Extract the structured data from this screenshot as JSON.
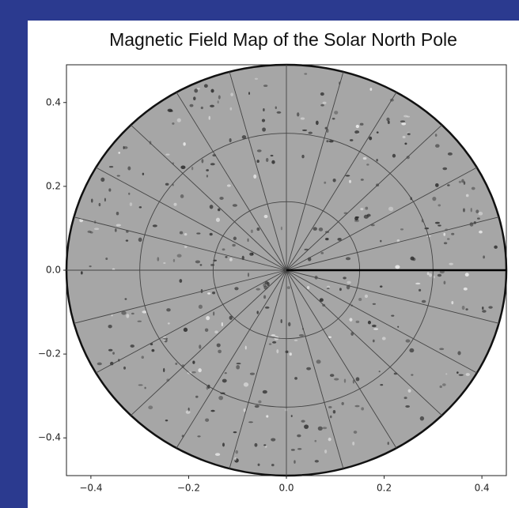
{
  "chart_data": {
    "type": "polar-map",
    "title": "Magnetic Field Map of the Solar North Pole",
    "xlim": [
      -0.45,
      0.45
    ],
    "ylim": [
      -0.49,
      0.49
    ],
    "xticks": [
      {
        "value": -0.4,
        "label": "−0.4"
      },
      {
        "value": -0.2,
        "label": "−0.2"
      },
      {
        "value": 0,
        "label": "0.0"
      },
      0.2,
      0.4
    ],
    "yticks": [
      {
        "value": -0.4,
        "label": "−0.4"
      },
      {
        "value": -0.2,
        "label": "−0.2"
      },
      {
        "value": 0,
        "label": "0.0"
      },
      0.2,
      0.4
    ],
    "color": "#a6a6a6"
  }
}
